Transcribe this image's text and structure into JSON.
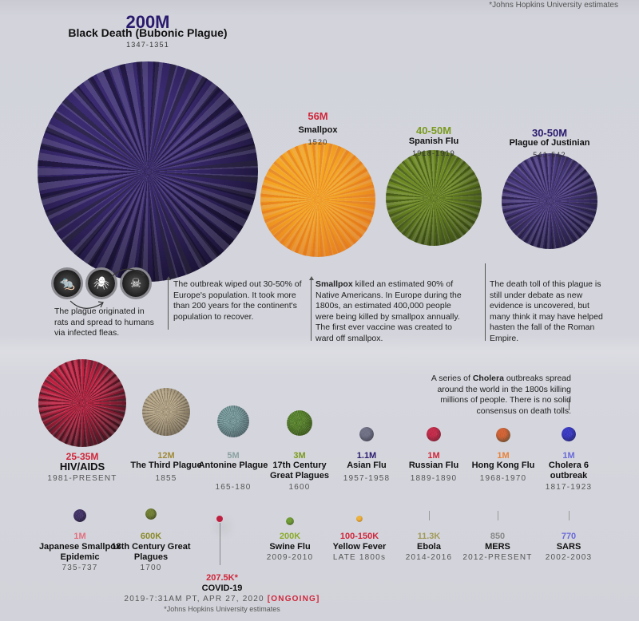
{
  "footnote_top": "*Johns Hopkins University estimates",
  "major": [
    {
      "value": "200M",
      "name": "Black Death (Bubonic Plague)",
      "years": "1347-1351",
      "value_color": "#2a1a6e",
      "ball_color": "#3a2a70",
      "ball_dark": "#0e0a1c"
    },
    {
      "value": "56M",
      "name": "Smallpox",
      "years": "1520",
      "value_color": "#d0263a",
      "ball_color": "#f5a623",
      "ball_dark": "#e0701a"
    },
    {
      "value": "40-50M",
      "name": "Spanish Flu",
      "years": "1918-1919",
      "value_color": "#7a9a1e",
      "ball_color": "#6d8a22",
      "ball_dark": "#2c3a10"
    },
    {
      "value": "30-50M",
      "name": "Plague of Justinian",
      "years": "541-542",
      "value_color": "#2a1a6e",
      "ball_color": "#4a3a80",
      "ball_dark": "#15102a"
    }
  ],
  "black_death_icons": [
    "rat-icon",
    "flea-icon",
    "skull-icon"
  ],
  "notes": {
    "black_death_origin": "The plague originated in rats and spread to humans via infected fleas.",
    "black_death": "The outbreak wiped out 30-50% of Europe's population. It took more than 200 years for the continent's population to recover.",
    "smallpox_bold": "Smallpox",
    "smallpox": " killed an estimated 90% of Native Americans. In Europe during the 1800s, an estimated 400,000 people were being killed by smallpox annually. The first ever vaccine was created to ward off smallpox.",
    "justinian": "The death toll of this plague is still under debate as new evidence is uncovered, but many think it may have helped hasten the fall of the Roman Empire.",
    "cholera_pre": "A series of ",
    "cholera_bold": "Cholera",
    "cholera_post": " outbreaks spread around the world in the 1800s killing millions of people. There is no solid consensus on death tolls."
  },
  "row2": [
    {
      "value": "25-35M",
      "name": "HIV/AIDS",
      "years": "1981-PRESENT",
      "value_color": "#d0263a",
      "ball_color": "#c02040",
      "ball_dark": "#1a1014"
    },
    {
      "value": "12M",
      "name": "The Third Plague",
      "years": "1855",
      "value_color": "#a08a3a",
      "ball_color": "#b8a888",
      "ball_dark": "#5a5040"
    },
    {
      "value": "5M",
      "name": "Antonine Plague",
      "years": "165-180",
      "value_color": "#8aa0a0",
      "ball_color": "#7aa0a0",
      "ball_dark": "#3a4a50"
    },
    {
      "value": "3M",
      "name": "17th Century Great Plagues",
      "years": "1600",
      "value_color": "#7a9a1e",
      "ball_color": "#5a8a2a",
      "ball_dark": "#2a4010"
    },
    {
      "value": "1.1M",
      "name": "Asian Flu",
      "years": "1957-1958",
      "value_color": "#2a1a6e",
      "ball_color": "#6a6a80",
      "ball_dark": "#2a2a3a"
    },
    {
      "value": "1M",
      "name": "Russian Flu",
      "years": "1889-1890",
      "value_color": "#d0263a",
      "ball_color": "#c02040",
      "ball_dark": "#5a1020"
    },
    {
      "value": "1M",
      "name": "Hong Kong Flu",
      "years": "1968-1970",
      "value_color": "#e8823a",
      "ball_color": "#d05a2a",
      "ball_dark": "#3a3a20"
    },
    {
      "value": "1M",
      "name": "Cholera 6 outbreak",
      "years": "1817-1923",
      "value_color": "#6a6ad8",
      "ball_color": "#3030c0",
      "ball_dark": "#101050"
    }
  ],
  "row3": [
    {
      "value": "1M",
      "name": "Japanese Smallpox Epidemic",
      "years": "735-737",
      "value_color": "#e07080",
      "ball_color": "#3a2a60",
      "ball_dark": "#100a20"
    },
    {
      "value": "600K",
      "name": "18th Century Great Plagues",
      "years": "1700",
      "value_color": "#8a8a2a",
      "ball_color": "#6a7a2a",
      "ball_dark": "#2a3010"
    },
    {
      "value": "200K",
      "name": "Swine Flu",
      "years": "2009-2010",
      "value_color": "#8aaa2a",
      "ball_color": "#6a9a2a",
      "ball_dark": "#2a4010"
    },
    {
      "value": "100-150K",
      "name": "Yellow Fever",
      "years": "LATE 1800s",
      "value_color": "#d0263a",
      "ball_color": "#f0b030",
      "ball_dark": "#a06010"
    },
    {
      "value": "11.3K",
      "name": "Ebola",
      "years": "2014-2016",
      "value_color": "#a09a5a",
      "ball_color": "#888",
      "ball_dark": "#555"
    },
    {
      "value": "850",
      "name": "MERS",
      "years": "2012-PRESENT",
      "value_color": "#888888",
      "ball_color": "#888",
      "ball_dark": "#555"
    },
    {
      "value": "770",
      "name": "SARS",
      "years": "2002-2003",
      "value_color": "#6a6ad8",
      "ball_color": "#888",
      "ball_dark": "#555"
    }
  ],
  "covid": {
    "value": "207.5K*",
    "name": "COVID-19",
    "years": "2019-7:31AM PT, APR 27, 2020",
    "status": "[ONGOING]",
    "value_color": "#d0263a",
    "status_color": "#d0263a",
    "ball_color": "#c02040"
  },
  "footnote_bottom": "*Johns Hopkins University estimates"
}
